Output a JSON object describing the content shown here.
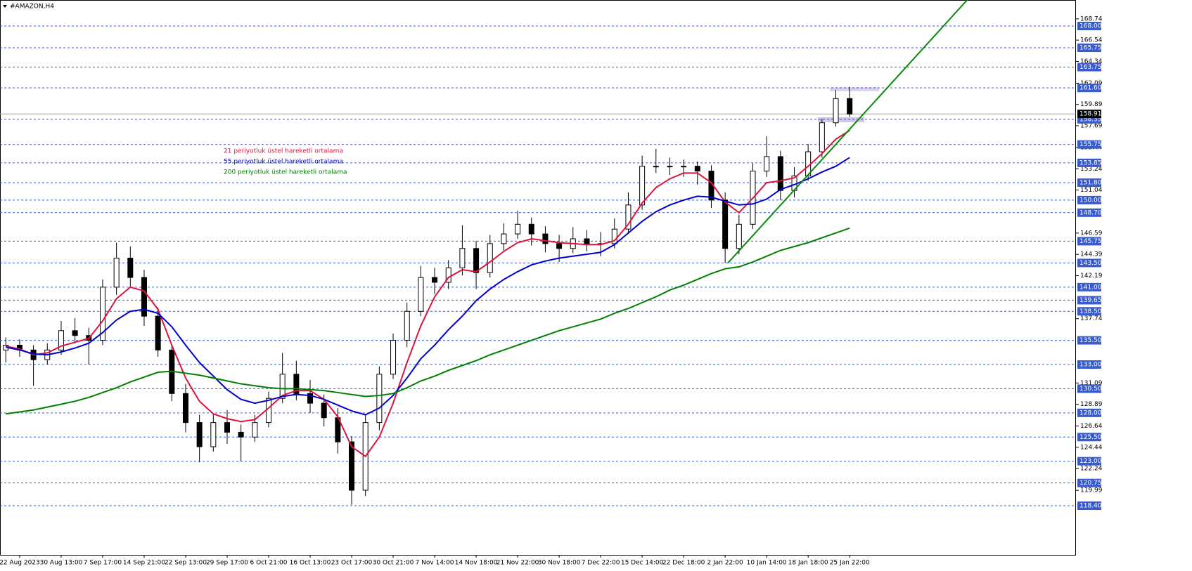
{
  "chart_data": {
    "type": "candlestick",
    "title": "#AMAZON,H4",
    "categories": [
      null,
      "22 Aug 2023",
      null,
      null,
      "30 Aug 13:00",
      null,
      null,
      "7 Sep 17:00",
      null,
      null,
      "14 Sep 21:00",
      null,
      null,
      "22 Sep 13:00",
      null,
      null,
      "29 Sep 17:00",
      null,
      null,
      "6 Oct 21:00",
      null,
      null,
      "16 Oct 13:00",
      null,
      null,
      "23 Oct 17:00",
      null,
      null,
      "30 Oct 21:00",
      null,
      null,
      "7 Nov 14:00",
      null,
      null,
      "14 Nov 18:00",
      null,
      null,
      "21 Nov 22:00",
      null,
      null,
      "30 Nov 18:00",
      null,
      null,
      "7 Dec 22:00",
      null,
      null,
      "15 Dec 14:00",
      null,
      null,
      "22 Dec 18:00",
      null,
      null,
      "2 Jan 22:00",
      null,
      null,
      "10 Jan 14:00",
      null,
      null,
      "18 Jan 18:00",
      null,
      null,
      "25 Jan 22:00"
    ],
    "ohlc": {
      "open": [
        134.5,
        135,
        134.5,
        133.5,
        134.5,
        136.5,
        136,
        135.5,
        141,
        144,
        142,
        138,
        134.5,
        130,
        127,
        124.5,
        127,
        126,
        125.5,
        127,
        129.5,
        132,
        130,
        129,
        127.5,
        125,
        120,
        127,
        132,
        135.5,
        138.5,
        142,
        141.5,
        143,
        145,
        142.5,
        145.5,
        146.5,
        147.5,
        146.5,
        145.5,
        145,
        146,
        145.5,
        145.5,
        147,
        149.5,
        153.5,
        153.5,
        153.5,
        153.5,
        153,
        150,
        145,
        147.5,
        153,
        154.5,
        151,
        152.5,
        155,
        158,
        160.5
      ],
      "high": [
        135.8,
        135.6,
        135,
        135.2,
        137.5,
        137.8,
        136.8,
        141.8,
        145.6,
        145.2,
        142.8,
        138.9,
        135,
        131,
        127.8,
        127.9,
        128.3,
        126.8,
        127.8,
        130.2,
        134.2,
        133.4,
        131.4,
        129.9,
        128.5,
        125.6,
        127.8,
        132.8,
        136.2,
        139.4,
        143.2,
        143,
        143.8,
        147.4,
        145.8,
        146.4,
        147.6,
        148.9,
        148.2,
        147.3,
        146.4,
        147.2,
        146.9,
        146.7,
        148.1,
        150.8,
        154.6,
        155.3,
        154.4,
        154.2,
        154,
        153.6,
        150.8,
        148.5,
        153.8,
        156.6,
        155.1,
        153.4,
        155.8,
        158.4,
        161.4,
        161.7
      ],
      "low": [
        133.2,
        133.8,
        130.8,
        133,
        134,
        135.2,
        133,
        135,
        140.2,
        141,
        137,
        133.8,
        129.2,
        126,
        122.9,
        124,
        124.8,
        123,
        125,
        126.5,
        129,
        129.3,
        128,
        126.6,
        123.8,
        118.5,
        119.4,
        126.2,
        131.5,
        134.8,
        138,
        140.3,
        140.8,
        142.2,
        140.8,
        142,
        144.8,
        146,
        145.3,
        144.6,
        143.6,
        144.5,
        144.7,
        144.2,
        145,
        146.5,
        149,
        152.8,
        152.6,
        152.4,
        151.6,
        149.2,
        143.5,
        144.4,
        147,
        152.4,
        150,
        150.3,
        152,
        154.4,
        157.6,
        158.6
      ],
      "close": [
        135,
        134.5,
        133.5,
        134.5,
        136.5,
        136,
        135.5,
        141,
        144,
        142,
        138,
        134.5,
        130,
        127,
        124.5,
        127,
        126,
        125.5,
        127,
        129.5,
        132,
        130,
        129,
        127.5,
        125,
        120,
        127,
        132,
        135.5,
        138.5,
        142,
        141.5,
        143,
        145,
        142.5,
        145.5,
        146.5,
        147.5,
        146.5,
        145.5,
        145,
        146,
        145.5,
        145.5,
        147,
        149.5,
        153.5,
        153.5,
        153.5,
        153.5,
        153,
        150,
        145,
        147.5,
        153,
        154.5,
        151,
        152.5,
        155,
        158,
        160.5,
        158.9
      ]
    },
    "series": [
      {
        "name": "21 periyotluk üstel hareketli ortalama",
        "color": "#dc143c",
        "values": [
          134.9,
          134.6,
          134.0,
          134.2,
          134.9,
          135.3,
          135.7,
          137.5,
          139.8,
          141.0,
          140.6,
          138.7,
          135.0,
          131.6,
          129.2,
          127.9,
          127.4,
          127.1,
          127.3,
          128.5,
          129.8,
          130.3,
          130.3,
          129.4,
          127.6,
          124.5,
          123.5,
          125.5,
          129.0,
          133.2,
          137.0,
          140.0,
          142.0,
          142.8,
          142.6,
          143.6,
          144.7,
          145.6,
          146.0,
          145.8,
          145.6,
          145.5,
          145.4,
          145.4,
          145.8,
          147.5,
          149.7,
          151.3,
          152.2,
          152.8,
          152.8,
          151.8,
          149.8,
          148.7,
          150.2,
          151.8,
          152.0,
          152.3,
          153.5,
          154.8,
          156.3,
          157.2
        ]
      },
      {
        "name": "55 periyotluk üstel hareketli ortalama",
        "color": "#0000cd",
        "values": [
          134.8,
          134.5,
          134.1,
          134.0,
          134.3,
          134.7,
          135.2,
          136.3,
          137.6,
          138.5,
          138.7,
          138.3,
          136.9,
          135.0,
          133.2,
          131.8,
          130.4,
          129.4,
          129.0,
          129.3,
          129.7,
          129.9,
          129.8,
          129.4,
          128.8,
          128.2,
          127.8,
          128.5,
          129.8,
          131.6,
          133.6,
          135.0,
          136.6,
          138.0,
          139.6,
          140.8,
          141.8,
          142.6,
          143.3,
          143.7,
          144.0,
          144.2,
          144.4,
          144.6,
          145.4,
          146.6,
          147.8,
          148.8,
          149.5,
          150.0,
          150.4,
          150.3,
          149.9,
          149.5,
          149.6,
          150.1,
          151.1,
          151.6,
          152.2,
          152.9,
          153.5,
          154.4
        ]
      },
      {
        "name": "200 periyotluk üstel hareketli ortalama",
        "color": "#008000",
        "values": [
          127.9,
          128.1,
          128.3,
          128.6,
          128.9,
          129.2,
          129.6,
          130.1,
          130.6,
          131.2,
          131.7,
          132.2,
          132.3,
          132.1,
          131.9,
          131.6,
          131.3,
          131.0,
          130.8,
          130.6,
          130.5,
          130.5,
          130.4,
          130.3,
          130.1,
          129.9,
          129.7,
          129.8,
          130.0,
          130.6,
          131.3,
          131.8,
          132.4,
          132.9,
          133.4,
          134.0,
          134.5,
          135.0,
          135.5,
          136.0,
          136.5,
          136.9,
          137.3,
          137.7,
          138.3,
          138.8,
          139.4,
          140.0,
          140.7,
          141.2,
          141.8,
          142.4,
          142.9,
          143.1,
          143.6,
          144.2,
          144.8,
          145.2,
          145.6,
          146.1,
          146.6,
          147.1
        ]
      }
    ],
    "trendline": {
      "x": [
        52.2,
        69.5
      ],
      "y": [
        143.5,
        170.7
      ],
      "color": "#0a8a0a"
    },
    "xlim": [
      -0.42,
      77.36
    ],
    "ylim": [
      113.32,
      170.69
    ],
    "yticks": [
      168.74,
      166.54,
      164.34,
      162.09,
      159.89,
      157.69,
      155.44,
      153.24,
      151.04,
      146.59,
      144.39,
      142.19,
      137.74,
      131.09,
      128.89,
      126.64,
      124.44,
      122.24,
      119.99
    ],
    "levels": [
      {
        "value": 168,
        "label": "168.00"
      },
      {
        "value": 165.75,
        "label": "165.75"
      },
      {
        "value": 163.75,
        "label": "163.75"
      },
      {
        "value": 161.6,
        "label": "161.60"
      },
      {
        "value": 158.35,
        "label": "158.35"
      },
      {
        "value": 155.75,
        "label": "155.75"
      },
      {
        "value": 153.85,
        "label": "153.85"
      },
      {
        "value": 151.8,
        "label": "151.80"
      },
      {
        "value": 150,
        "label": "150.00"
      },
      {
        "value": 148.7,
        "label": "148.70"
      },
      {
        "value": 145.75,
        "label": "145.75"
      },
      {
        "value": 143.5,
        "label": "143.50"
      },
      {
        "value": 141,
        "label": "141.00"
      },
      {
        "value": 139.65,
        "label": "139.65"
      },
      {
        "value": 138.5,
        "label": "138.50"
      },
      {
        "value": 135.5,
        "label": "135.50"
      },
      {
        "value": 133,
        "label": "133.00"
      },
      {
        "value": 130.5,
        "label": "130.50"
      },
      {
        "value": 128,
        "label": "128.00"
      },
      {
        "value": 125.5,
        "label": "125.50"
      },
      {
        "value": 123,
        "label": "123.00"
      },
      {
        "value": 120.75,
        "label": "120.75"
      },
      {
        "value": 118.4,
        "label": "118.40"
      }
    ],
    "level_color": "#3a5bcc",
    "current_price": 158.91
  }
}
